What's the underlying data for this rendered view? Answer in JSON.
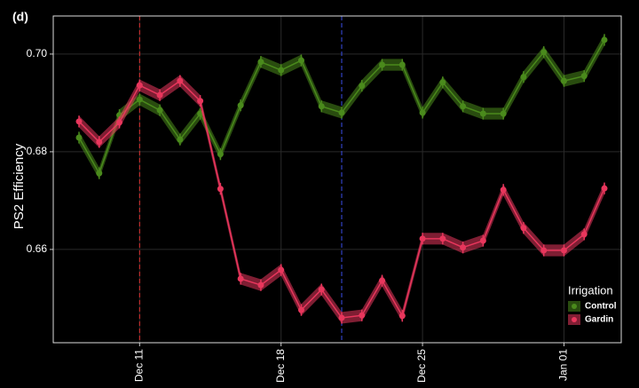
{
  "chart_data": {
    "type": "line",
    "panel_label": "(d)",
    "y_label": "PS2 Efficiency",
    "categories": [
      null,
      null,
      null,
      "Dec 11",
      null,
      null,
      null,
      null,
      null,
      null,
      "Dec 18",
      null,
      null,
      null,
      null,
      null,
      null,
      "Dec 25",
      null,
      null,
      null,
      null,
      null,
      null,
      "Jan 01",
      null,
      null
    ],
    "series": [
      {
        "name": "Control",
        "color": "#4a8a1c",
        "error": 0.0012,
        "values": [
          0.6829,
          0.6756,
          0.6875,
          0.6907,
          0.6885,
          0.6825,
          0.6878,
          0.6795,
          0.6895,
          0.6984,
          0.6967,
          0.6987,
          0.6893,
          0.688,
          0.6935,
          0.6978,
          0.6978,
          0.688,
          0.6942,
          0.6893,
          0.6878,
          0.6878,
          0.6953,
          0.7004,
          0.6945,
          0.6955,
          0.7029
        ]
      },
      {
        "name": "Gardin",
        "color": "#e8365c",
        "error": 0.0012,
        "values": [
          0.6862,
          0.682,
          0.686,
          0.6936,
          0.6916,
          0.6945,
          0.6904,
          0.6724,
          0.654,
          0.6527,
          0.6558,
          0.6476,
          0.6518,
          0.646,
          0.6465,
          0.6536,
          0.6464,
          0.6622,
          0.6622,
          0.6604,
          0.6618,
          0.6722,
          0.6644,
          0.6598,
          0.6598,
          0.6631,
          0.6725
        ]
      }
    ],
    "vlines": [
      {
        "at": 3,
        "color": "#e03030"
      },
      {
        "at": 13,
        "color": "#3a4ee8"
      }
    ],
    "ylim": [
      0.6409,
      0.7078
    ],
    "yticks": [
      0.66,
      0.68,
      {
        "value": 0.7,
        "label": "0.70"
      }
    ],
    "grid": true,
    "legend_title": "Irrigation",
    "legend": "bottom-right"
  }
}
